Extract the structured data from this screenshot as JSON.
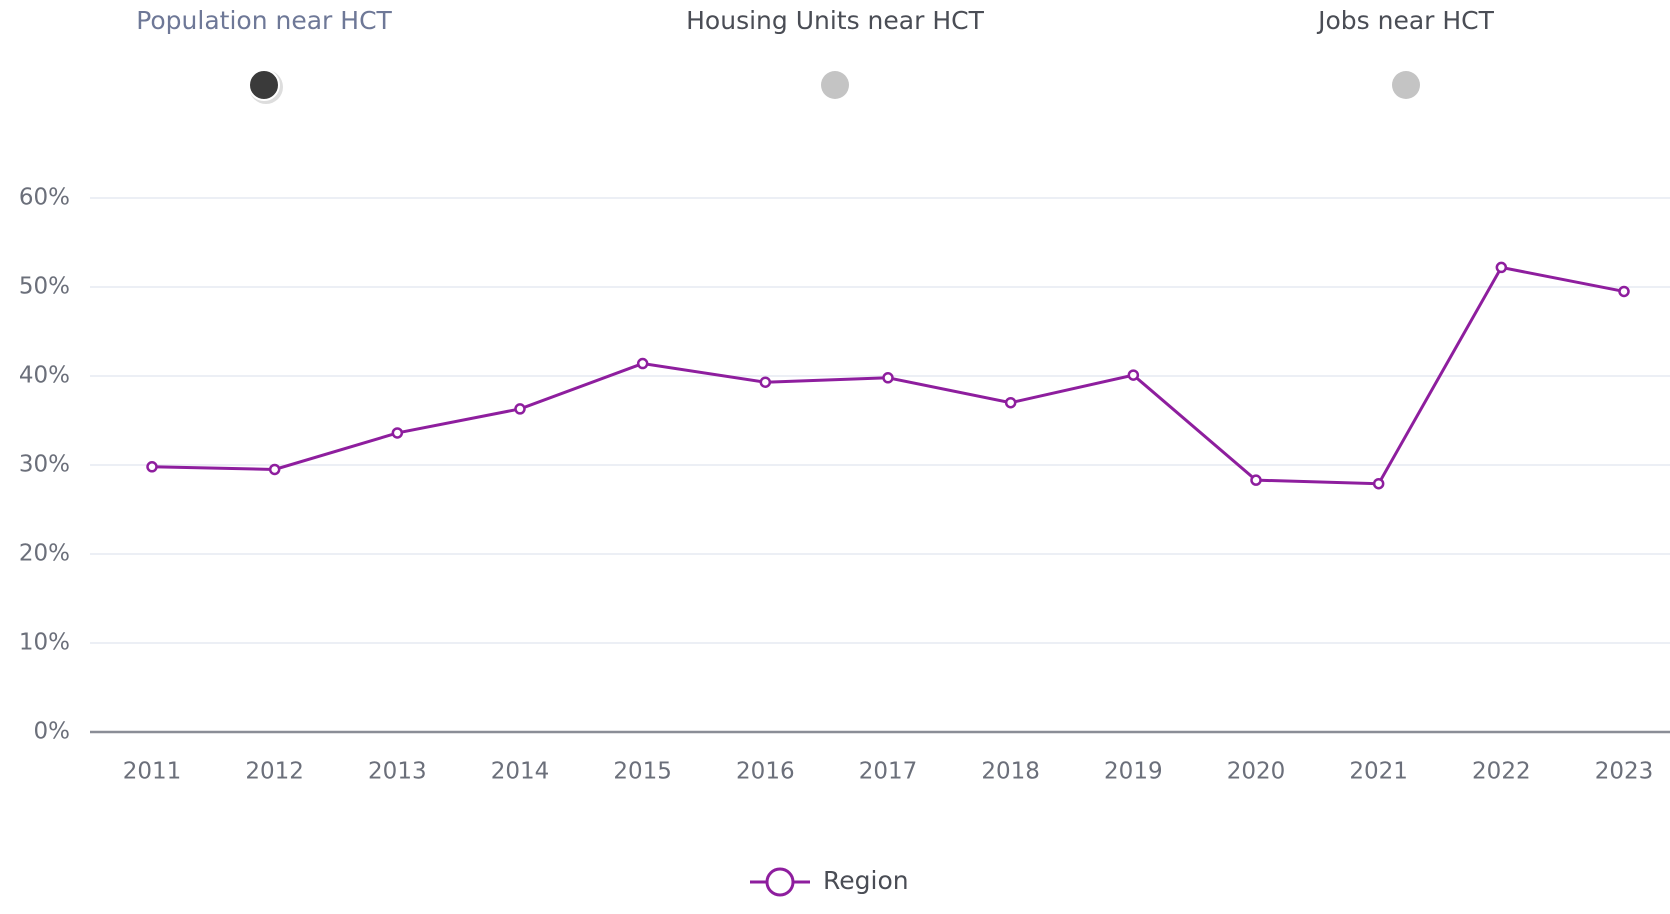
{
  "tabs": [
    {
      "label": "Population near HCT",
      "active": true
    },
    {
      "label": "Housing Units near HCT",
      "active": false
    },
    {
      "label": "Jobs near HCT",
      "active": false
    }
  ],
  "chart_data": {
    "type": "line",
    "categories": [
      "2011",
      "2012",
      "2013",
      "2014",
      "2015",
      "2016",
      "2017",
      "2018",
      "2019",
      "2020",
      "2021",
      "2022",
      "2023"
    ],
    "series": [
      {
        "name": "Region",
        "color": "#8e1e9e",
        "values": [
          29.8,
          29.5,
          33.6,
          36.3,
          41.4,
          39.3,
          39.8,
          37.0,
          40.1,
          28.3,
          27.9,
          52.2,
          49.5
        ]
      }
    ],
    "ylim": [
      0,
      60
    ],
    "yticks": [
      {
        "value": 0,
        "label": "0%"
      },
      {
        "value": 10,
        "label": "10%"
      },
      {
        "value": 20,
        "label": "20%"
      },
      {
        "value": 30,
        "label": "30%"
      },
      {
        "value": 40,
        "label": "40%"
      },
      {
        "value": 50,
        "label": "50%"
      },
      {
        "value": 60,
        "label": "60%"
      }
    ],
    "grid": true,
    "legend": "bottom"
  }
}
